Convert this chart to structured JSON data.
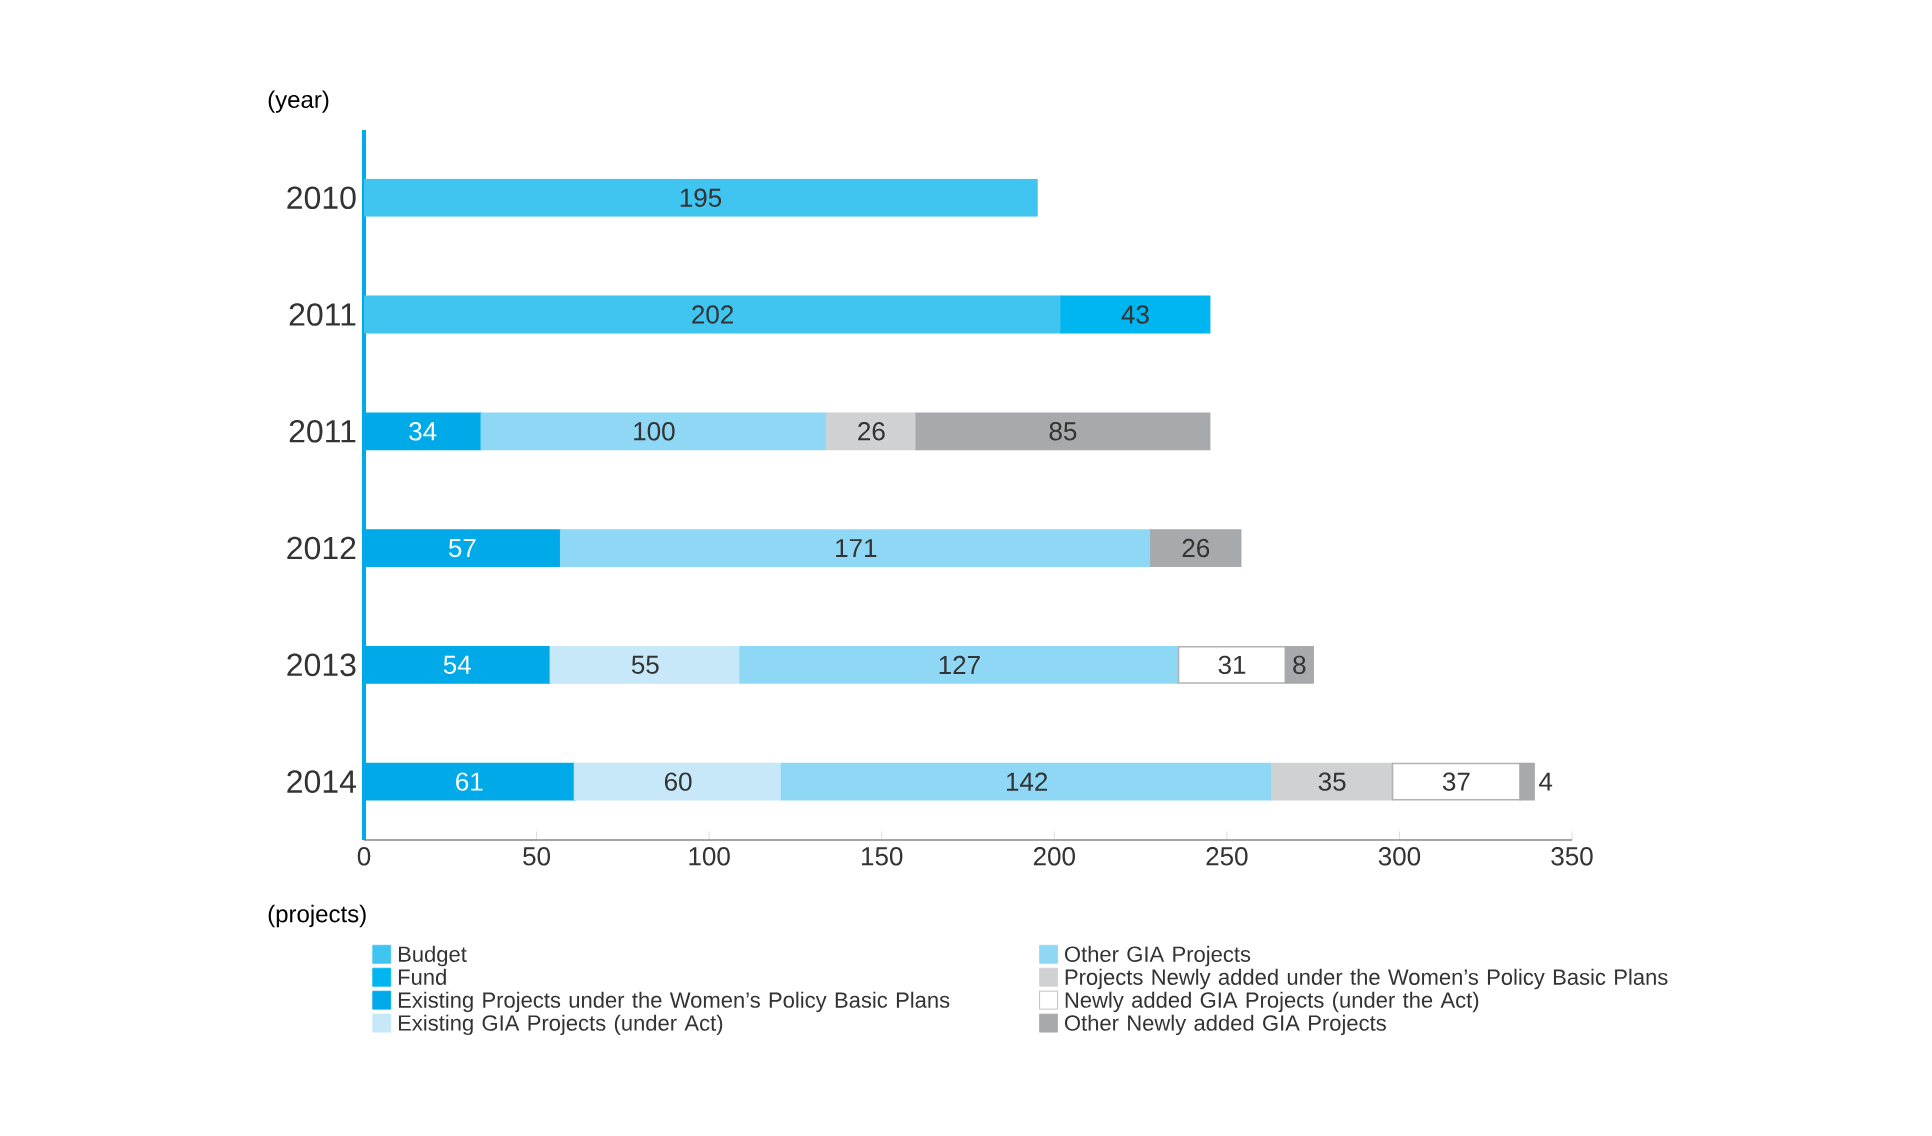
{
  "chart_data": {
    "type": "bar",
    "orientation": "horizontal",
    "stacked": true,
    "data_labels": true,
    "legend": "bottom",
    "xlabel": "(projects)",
    "ylabel": "(year)",
    "categories": [
      "2010",
      "2011",
      "2011",
      "2012",
      "2013",
      "2014"
    ],
    "xlim": [
      0,
      350
    ],
    "xticks": [
      0,
      50,
      100,
      150,
      200,
      250,
      300,
      350
    ],
    "series": [
      {
        "name": "Budget",
        "color": "#40c4f0",
        "values": [
          195,
          202,
          null,
          null,
          null,
          null
        ]
      },
      {
        "name": "Fund",
        "color": "#00b6f0",
        "values": [
          null,
          43,
          null,
          null,
          null,
          null
        ]
      },
      {
        "name": "Existing Projects under the Women’s Policy Basic Plans",
        "color": "#00aae8",
        "values": [
          null,
          null,
          34,
          57,
          54,
          61
        ]
      },
      {
        "name": "Existing GIA Projects (under Act)",
        "color": "#c6e8f8",
        "values": [
          null,
          null,
          null,
          null,
          55,
          60
        ]
      },
      {
        "name": "Other GIA Projects",
        "color": "#8ed8f6",
        "values": [
          null,
          null,
          100,
          171,
          127,
          142
        ]
      },
      {
        "name": "Projects Newly added under the Women’s Policy Basic Plans",
        "color": "#d0d1d3",
        "values": [
          null,
          null,
          26,
          null,
          null,
          35
        ]
      },
      {
        "name": "Newly added GIA Projects (under the Act)",
        "color": "#ffffff",
        "values": [
          null,
          null,
          null,
          null,
          31,
          37
        ]
      },
      {
        "name": "Other Newly added GIA Projects",
        "color": "#a7a9ac",
        "values": [
          null,
          null,
          85,
          26,
          8,
          4
        ]
      }
    ]
  }
}
